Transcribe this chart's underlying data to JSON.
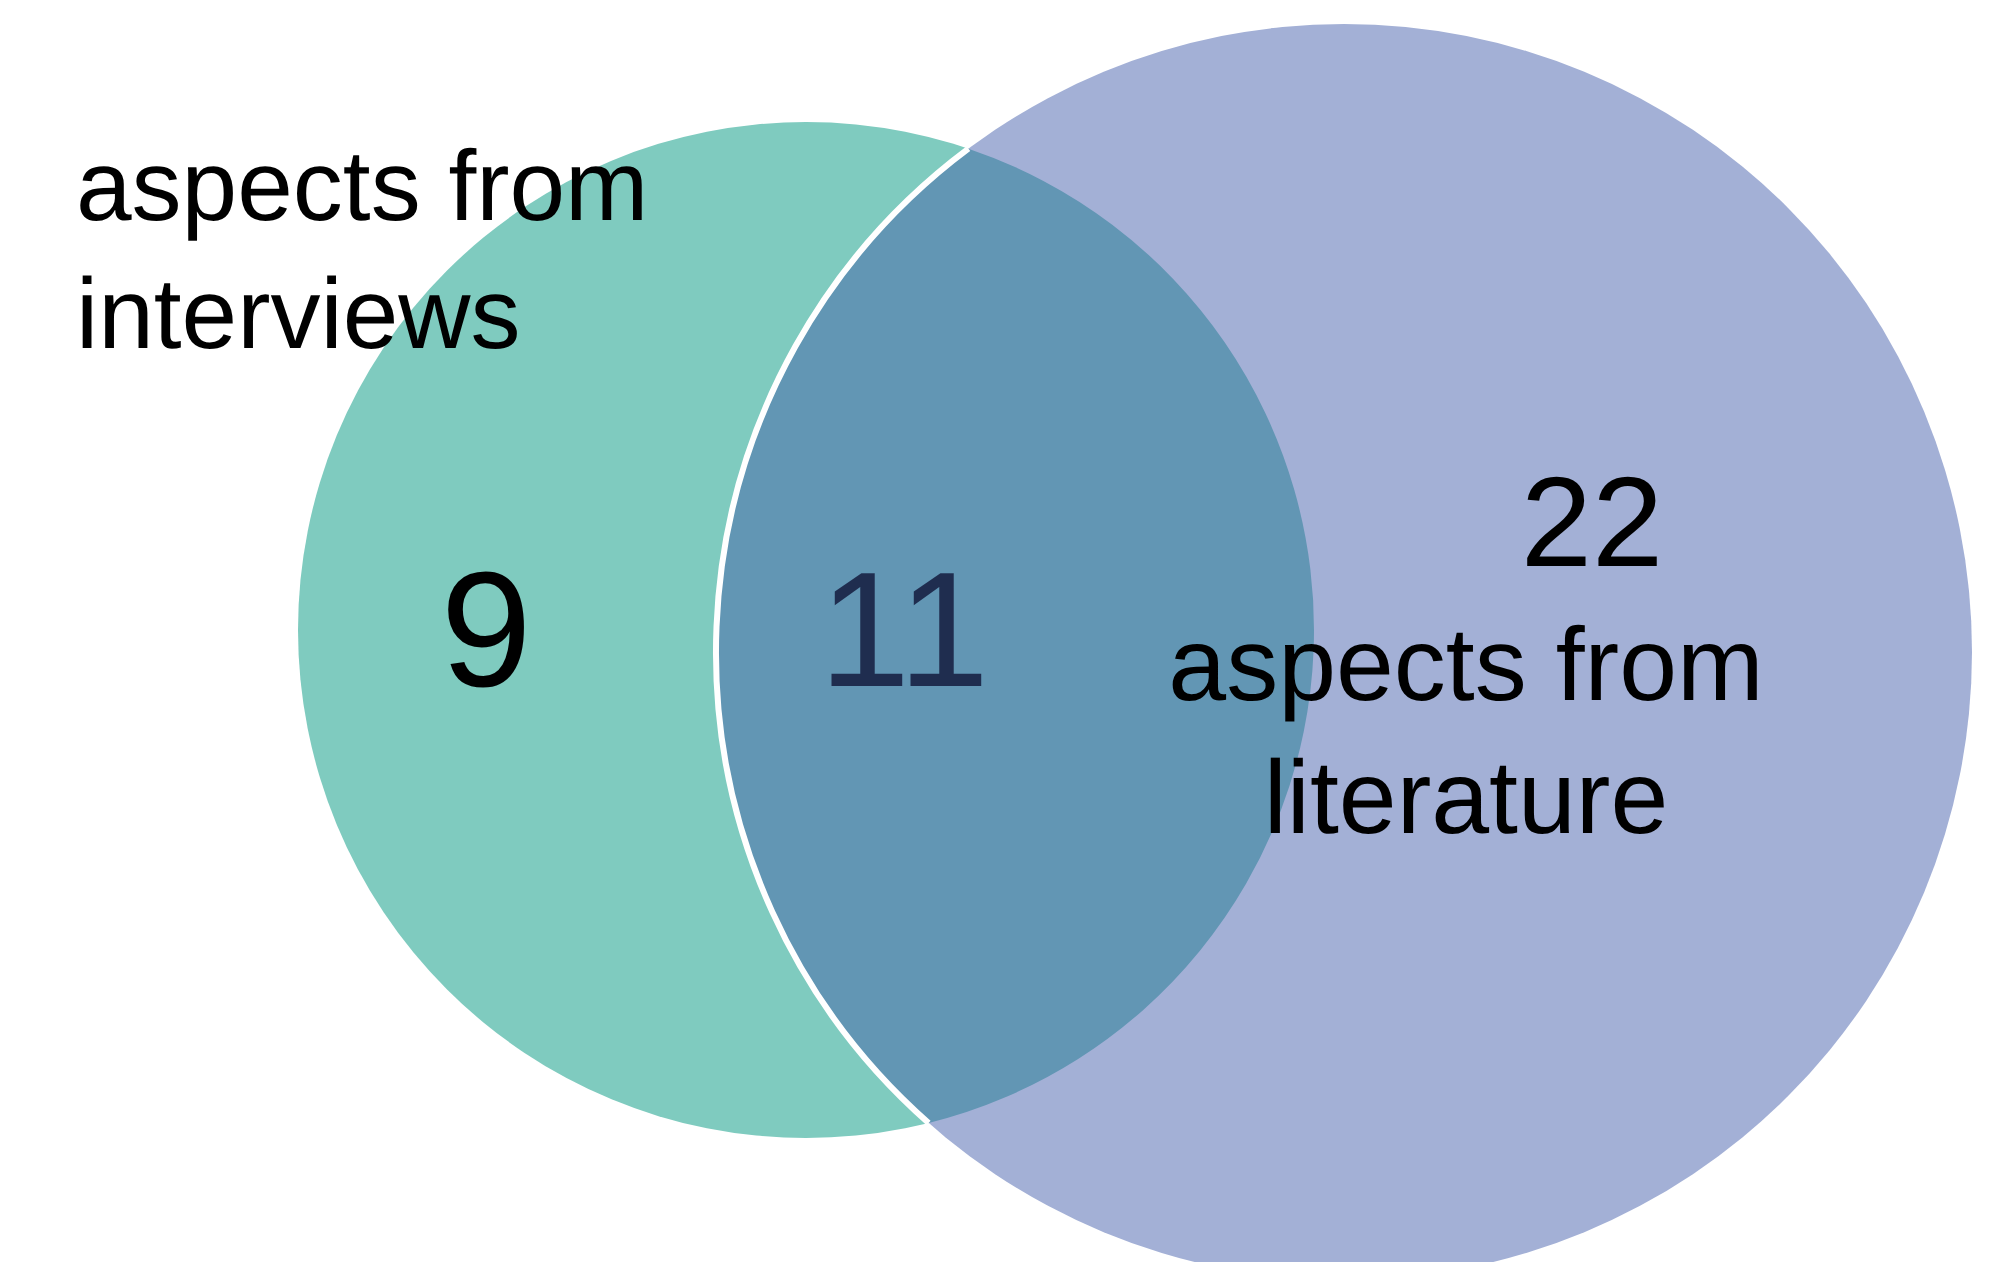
{
  "chart_data": {
    "type": "other",
    "categories": [
      "aspects from interviews",
      null,
      "aspects from literature"
    ],
    "values": [
      9,
      11,
      22
    ],
    "colors": [
      "#7fcbbf",
      "#6296b4",
      "#a3b0d6"
    ],
    "data_labels": true
  }
}
